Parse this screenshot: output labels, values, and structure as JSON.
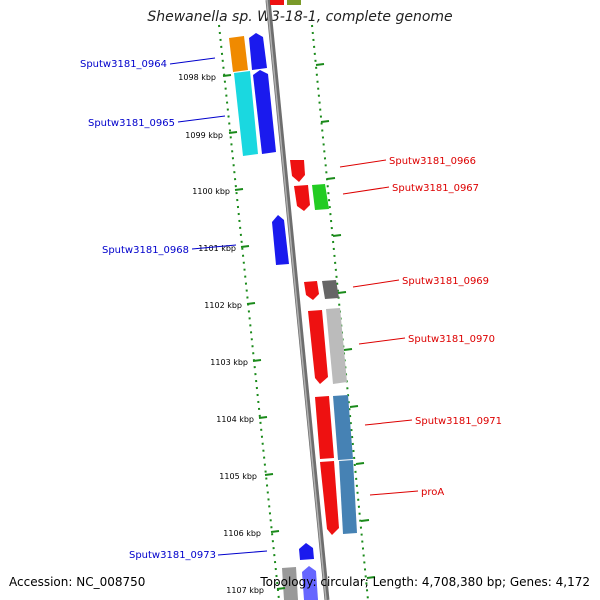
{
  "title": "Shewanella sp. W3-18-1, complete genome",
  "footer": {
    "accession": "Accession: NC_008750",
    "summary": "Topology: circular; Length: 4,708,380 bp; Genes: 4,172"
  },
  "colors": {
    "backbone": "#8a8a8a",
    "tick": "#1a8a1a",
    "left_label": "#0000cc",
    "right_label": "#dd0000"
  },
  "ticks": [
    {
      "label": "1098 kbp"
    },
    {
      "label": "1099 kbp"
    },
    {
      "label": "1100 kbp"
    },
    {
      "label": "1101 kbp"
    },
    {
      "label": "1102 kbp"
    },
    {
      "label": "1103 kbp"
    },
    {
      "label": "1104 kbp"
    },
    {
      "label": "1105 kbp"
    },
    {
      "label": "1106 kbp"
    },
    {
      "label": "1107 kbp"
    }
  ],
  "labels": [
    {
      "text": "Sputw3181_0964",
      "side": "left"
    },
    {
      "text": "Sputw3181_0965",
      "side": "left"
    },
    {
      "text": "Sputw3181_0966",
      "side": "right"
    },
    {
      "text": "Sputw3181_0967",
      "side": "right"
    },
    {
      "text": "Sputw3181_0968",
      "side": "left"
    },
    {
      "text": "Sputw3181_0969",
      "side": "right"
    },
    {
      "text": "Sputw3181_0970",
      "side": "right"
    },
    {
      "text": "Sputw3181_0971",
      "side": "right"
    },
    {
      "text": "proA",
      "side": "right"
    },
    {
      "text": "Sputw3181_0973",
      "side": "left"
    }
  ]
}
